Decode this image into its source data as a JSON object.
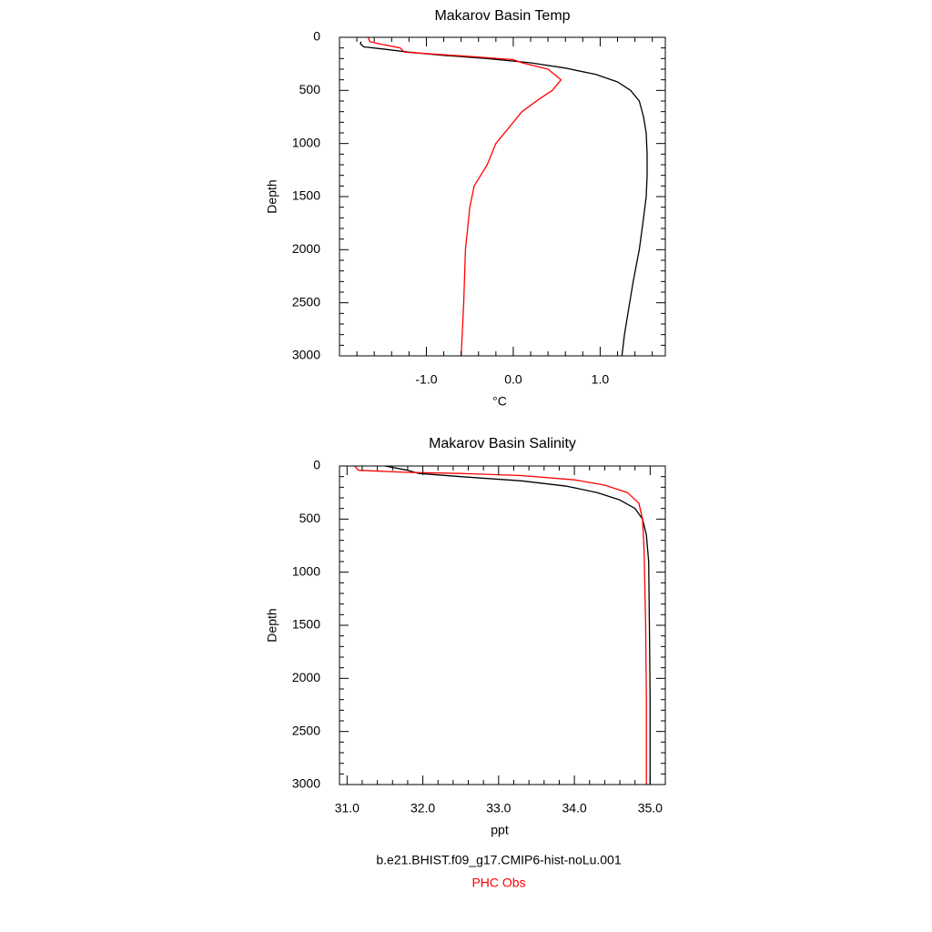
{
  "chart_data": [
    {
      "type": "line",
      "title": "Makarov Basin Temp",
      "xlabel": "°C",
      "ylabel": "Depth",
      "xlim": [
        -2.0,
        1.75
      ],
      "ylim": [
        3000,
        0
      ],
      "y_inverted": true,
      "xticks": [
        {
          "value": -1.0,
          "label": "-1.0"
        },
        {
          "value": 0.0,
          "label": "0.0"
        },
        {
          "value": 1.0,
          "label": "1.0"
        }
      ],
      "yticks": [
        {
          "value": 0,
          "label": "0"
        },
        {
          "value": 500,
          "label": "500"
        },
        {
          "value": 1000,
          "label": "1000"
        },
        {
          "value": 1500,
          "label": "1500"
        },
        {
          "value": 2000,
          "label": "2000"
        },
        {
          "value": 2500,
          "label": "2500"
        },
        {
          "value": 3000,
          "label": "3000"
        }
      ],
      "series": [
        {
          "color": "#000000",
          "points": [
            [
              -1.75,
              40
            ],
            [
              -1.76,
              60
            ],
            [
              -1.72,
              90
            ],
            [
              -1.5,
              110
            ],
            [
              -1.2,
              140
            ],
            [
              -0.8,
              170
            ],
            [
              -0.3,
              200
            ],
            [
              0.2,
              240
            ],
            [
              0.6,
              290
            ],
            [
              0.95,
              350
            ],
            [
              1.2,
              420
            ],
            [
              1.35,
              500
            ],
            [
              1.45,
              600
            ],
            [
              1.5,
              750
            ],
            [
              1.53,
              900
            ],
            [
              1.54,
              1100
            ],
            [
              1.54,
              1300
            ],
            [
              1.53,
              1500
            ],
            [
              1.5,
              1700
            ],
            [
              1.45,
              2000
            ],
            [
              1.38,
              2300
            ],
            [
              1.32,
              2600
            ],
            [
              1.28,
              2800
            ],
            [
              1.25,
              3000
            ]
          ]
        },
        {
          "color": "#ff0000",
          "points": [
            [
              -1.67,
              0
            ],
            [
              -1.65,
              40
            ],
            [
              -1.55,
              60
            ],
            [
              -1.3,
              100
            ],
            [
              -1.25,
              140
            ],
            [
              -0.5,
              180
            ],
            [
              0.0,
              210
            ],
            [
              0.1,
              240
            ],
            [
              0.4,
              300
            ],
            [
              0.55,
              400
            ],
            [
              0.45,
              500
            ],
            [
              0.3,
              580
            ],
            [
              0.1,
              700
            ],
            [
              -0.05,
              850
            ],
            [
              -0.2,
              1000
            ],
            [
              -0.3,
              1200
            ],
            [
              -0.45,
              1400
            ],
            [
              -0.5,
              1600
            ],
            [
              -0.55,
              2000
            ],
            [
              -0.57,
              2500
            ],
            [
              -0.6,
              3000
            ]
          ]
        }
      ]
    },
    {
      "type": "line",
      "title": "Makarov Basin Salinity",
      "xlabel": "ppt",
      "ylabel": "Depth",
      "xlim": [
        30.9,
        35.2
      ],
      "ylim": [
        3000,
        0
      ],
      "y_inverted": true,
      "xticks": [
        {
          "value": 31.0,
          "label": "31.0"
        },
        {
          "value": 32.0,
          "label": "32.0"
        },
        {
          "value": 33.0,
          "label": "33.0"
        },
        {
          "value": 34.0,
          "label": "34.0"
        },
        {
          "value": 35.0,
          "label": "35.0"
        }
      ],
      "yticks": [
        {
          "value": 0,
          "label": "0"
        },
        {
          "value": 500,
          "label": "500"
        },
        {
          "value": 1000,
          "label": "1000"
        },
        {
          "value": 1500,
          "label": "1500"
        },
        {
          "value": 2000,
          "label": "2000"
        },
        {
          "value": 2500,
          "label": "2500"
        },
        {
          "value": 3000,
          "label": "3000"
        }
      ],
      "series": [
        {
          "color": "#000000",
          "points": [
            [
              31.5,
              0
            ],
            [
              31.8,
              40
            ],
            [
              31.95,
              70
            ],
            [
              32.5,
              100
            ],
            [
              33.3,
              140
            ],
            [
              33.9,
              190
            ],
            [
              34.3,
              250
            ],
            [
              34.6,
              320
            ],
            [
              34.8,
              400
            ],
            [
              34.9,
              500
            ],
            [
              34.95,
              650
            ],
            [
              34.98,
              900
            ],
            [
              34.99,
              1500
            ],
            [
              35.0,
              2200
            ],
            [
              35.0,
              3000
            ]
          ]
        },
        {
          "color": "#ff0000",
          "points": [
            [
              31.1,
              0
            ],
            [
              31.15,
              40
            ],
            [
              31.8,
              60
            ],
            [
              32.5,
              70
            ],
            [
              33.3,
              90
            ],
            [
              34.0,
              130
            ],
            [
              34.4,
              180
            ],
            [
              34.7,
              250
            ],
            [
              34.85,
              350
            ],
            [
              34.9,
              500
            ],
            [
              34.92,
              800
            ],
            [
              34.94,
              1500
            ],
            [
              34.95,
              2200
            ],
            [
              34.95,
              3000
            ]
          ]
        }
      ]
    }
  ],
  "legend": {
    "lines": [
      {
        "text": "b.e21.BHIST.f09_g17.CMIP6-hist-noLu.001",
        "color": "#000000"
      },
      {
        "text": "PHC Obs",
        "color": "#ff0000"
      }
    ]
  }
}
